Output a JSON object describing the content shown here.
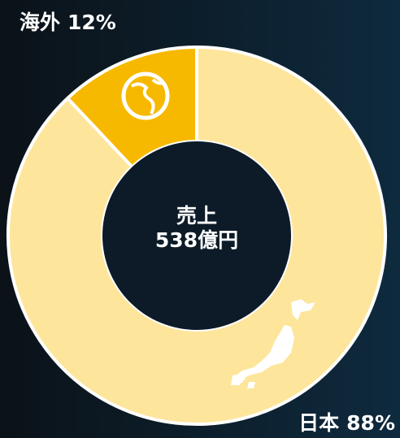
{
  "chart_data": {
    "type": "donut",
    "categories": [
      "日本",
      "海外"
    ],
    "values": [
      88,
      12
    ],
    "value_labels": [
      "88%",
      "12%"
    ],
    "colors": [
      "#fde59b",
      "#f6b900"
    ],
    "center_text": [
      "売上",
      "538億円"
    ]
  }
}
